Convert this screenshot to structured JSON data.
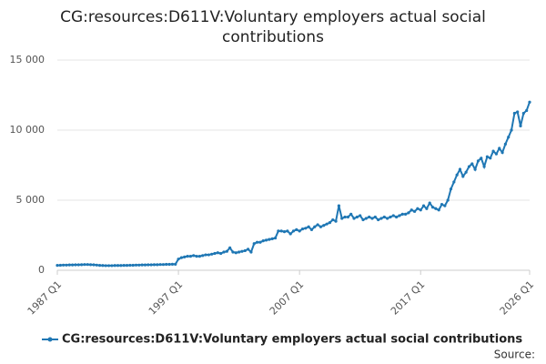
{
  "chart_data": {
    "type": "line",
    "title": "CG:resources:D611V:Voluntary employers actual social contributions",
    "source": "Source:",
    "categories": [
      "1987 Q1",
      null,
      null,
      null,
      null,
      null,
      null,
      null,
      null,
      null,
      null,
      null,
      null,
      null,
      null,
      null,
      null,
      null,
      null,
      null,
      null,
      null,
      null,
      null,
      null,
      null,
      null,
      null,
      null,
      null,
      null,
      null,
      null,
      null,
      null,
      null,
      null,
      null,
      null,
      null,
      "1997 Q1",
      null,
      null,
      null,
      null,
      null,
      null,
      null,
      null,
      null,
      null,
      null,
      null,
      null,
      null,
      null,
      null,
      null,
      null,
      null,
      null,
      null,
      null,
      null,
      null,
      null,
      null,
      null,
      null,
      null,
      null,
      null,
      null,
      null,
      null,
      null,
      null,
      null,
      null,
      null,
      "2007 Q1",
      null,
      null,
      null,
      null,
      null,
      null,
      null,
      null,
      null,
      null,
      null,
      null,
      null,
      null,
      null,
      null,
      null,
      null,
      null,
      null,
      null,
      null,
      null,
      null,
      null,
      null,
      null,
      null,
      null,
      null,
      null,
      null,
      null,
      null,
      null,
      null,
      null,
      null,
      null,
      "2017 Q1",
      null,
      null,
      null,
      null,
      null,
      null,
      null,
      null,
      null,
      null,
      null,
      null,
      null,
      null,
      null,
      null,
      null,
      null,
      null,
      null,
      null,
      null,
      null,
      null,
      null,
      null,
      null,
      null,
      null,
      null,
      null,
      null,
      null,
      null,
      null,
      "2026 Q1"
    ],
    "series": [
      {
        "name": "CG:resources:D611V:Voluntary employers actual social contributions",
        "color": "#1f77b4",
        "values": [
          350,
          360,
          370,
          370,
          380,
          380,
          390,
          390,
          400,
          410,
          410,
          400,
          390,
          370,
          350,
          340,
          330,
          330,
          330,
          340,
          340,
          340,
          350,
          350,
          360,
          360,
          370,
          370,
          380,
          380,
          390,
          390,
          400,
          400,
          410,
          410,
          420,
          420,
          430,
          430,
          800,
          900,
          950,
          1000,
          1000,
          1050,
          1000,
          1000,
          1050,
          1100,
          1100,
          1150,
          1200,
          1250,
          1200,
          1300,
          1350,
          1600,
          1300,
          1250,
          1300,
          1350,
          1400,
          1500,
          1300,
          1900,
          2000,
          2000,
          2100,
          2150,
          2200,
          2250,
          2300,
          2800,
          2800,
          2750,
          2800,
          2600,
          2800,
          2900,
          2800,
          2950,
          3000,
          3100,
          2900,
          3100,
          3250,
          3100,
          3200,
          3300,
          3400,
          3600,
          3500,
          4600,
          3700,
          3800,
          3800,
          4000,
          3700,
          3800,
          3900,
          3600,
          3700,
          3800,
          3700,
          3800,
          3600,
          3700,
          3800,
          3700,
          3800,
          3900,
          3800,
          3900,
          4000,
          4000,
          4100,
          4300,
          4200,
          4400,
          4300,
          4600,
          4400,
          4800,
          4500,
          4400,
          4300,
          4700,
          4600,
          5000,
          5800,
          6300,
          6800,
          7200,
          6700,
          7000,
          7400,
          7600,
          7200,
          7800,
          8000,
          7400,
          8100,
          8000,
          8500,
          8300,
          8700,
          8400,
          9000,
          9500,
          10000,
          11200,
          11300,
          10300,
          11200,
          11400,
          12000
        ]
      }
    ],
    "ylim": [
      0,
      15000
    ],
    "yticks": [
      0,
      {
        "value": 5000,
        "label": "5 000"
      },
      {
        "value": 10000,
        "label": "10 000"
      },
      {
        "value": 15000,
        "label": "15 000"
      }
    ],
    "grid": true
  }
}
